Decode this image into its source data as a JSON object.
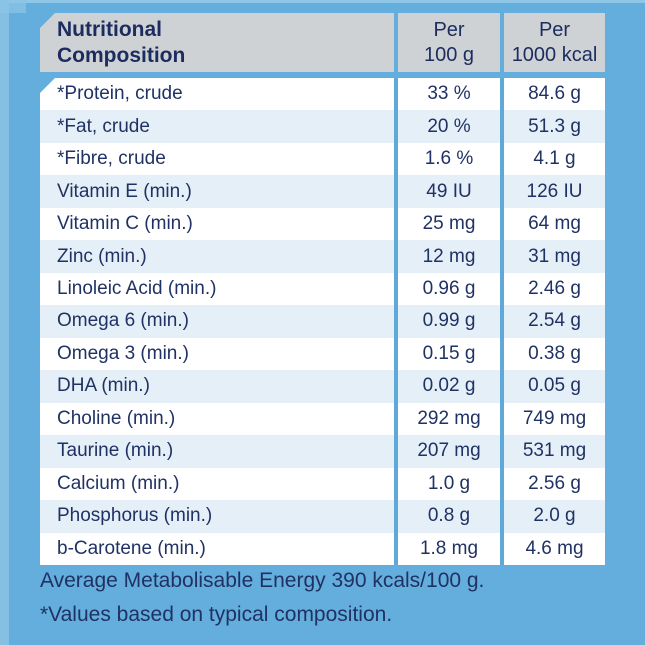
{
  "colors": {
    "background": "#64aedd",
    "header_bg": "#ced2d5",
    "row_alt": "#e4eff8",
    "row_base": "#ffffff",
    "separator": "#5ea9d8",
    "text_navy": "#203263"
  },
  "table": {
    "header": {
      "col1_line1": "Nutritional",
      "col1_line2": "Composition",
      "col2_line1": "Per",
      "col2_line2": "100 g",
      "col3_line1": "Per",
      "col3_line2": "1000 kcal"
    },
    "rows": [
      {
        "label": "*Protein, crude",
        "per_100g": "33 %",
        "per_1000kcal": "84.6 g"
      },
      {
        "label": "*Fat, crude",
        "per_100g": "20 %",
        "per_1000kcal": "51.3 g"
      },
      {
        "label": "*Fibre, crude",
        "per_100g": "1.6 %",
        "per_1000kcal": "4.1 g"
      },
      {
        "label": "Vitamin E (min.)",
        "per_100g": "49 IU",
        "per_1000kcal": "126 IU"
      },
      {
        "label": "Vitamin C (min.)",
        "per_100g": "25 mg",
        "per_1000kcal": "64 mg"
      },
      {
        "label": "Zinc (min.)",
        "per_100g": "12 mg",
        "per_1000kcal": "31 mg"
      },
      {
        "label": "Linoleic Acid (min.)",
        "per_100g": "0.96 g",
        "per_1000kcal": "2.46 g"
      },
      {
        "label": "Omega 6 (min.)",
        "per_100g": "0.99 g",
        "per_1000kcal": "2.54 g"
      },
      {
        "label": "Omega 3 (min.)",
        "per_100g": "0.15 g",
        "per_1000kcal": "0.38 g"
      },
      {
        "label": "DHA (min.)",
        "per_100g": "0.02 g",
        "per_1000kcal": "0.05 g"
      },
      {
        "label": "Choline (min.)",
        "per_100g": "292 mg",
        "per_1000kcal": "749 mg"
      },
      {
        "label": "Taurine (min.)",
        "per_100g": "207 mg",
        "per_1000kcal": "531 mg"
      },
      {
        "label": "Calcium (min.)",
        "per_100g": "1.0 g",
        "per_1000kcal": "2.56 g"
      },
      {
        "label": "Phosphorus (min.)",
        "per_100g": "0.8 g",
        "per_1000kcal": "2.0 g"
      },
      {
        "label": "b-Carotene (min.)",
        "per_100g": "1.8 mg",
        "per_1000kcal": "4.6 mg"
      }
    ]
  },
  "footer": {
    "energy_note": "Average Metabolisable Energy 390 kcals/100 g.",
    "values_note": "*Values based on typical composition."
  }
}
